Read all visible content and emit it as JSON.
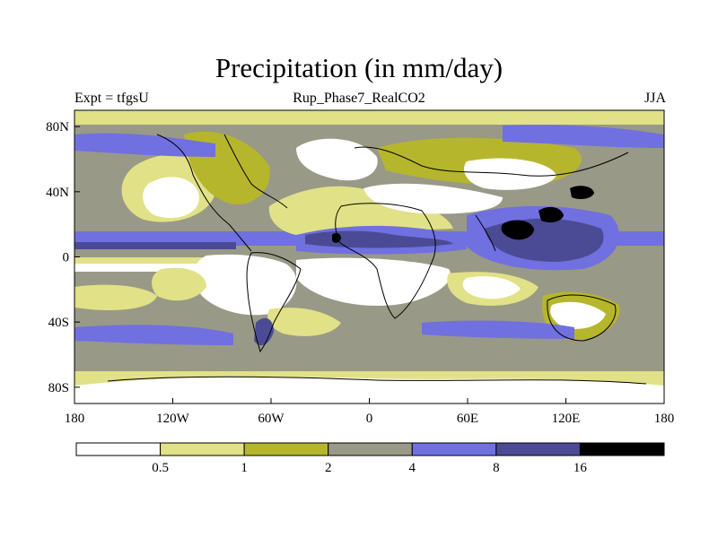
{
  "title": "Precipitation (in mm/day)",
  "left_label": "Expt = tfgsU",
  "center_label": "Rup_Phase7_RealCO2",
  "right_label": "JJA",
  "x_ticks": [
    "180",
    "120W",
    "60W",
    "0",
    "60E",
    "120E",
    "180"
  ],
  "y_ticks": [
    "80N",
    "40N",
    "0",
    "40S",
    "80S"
  ],
  "colorbar": {
    "levels": [
      "0.5",
      "1",
      "2",
      "4",
      "8",
      "16"
    ],
    "colors": [
      "#ffffff",
      "#e1e187",
      "#b6b62d",
      "#999987",
      "#7070e0",
      "#4b4b95",
      "#000000"
    ]
  },
  "chart_data": {
    "type": "heatmap",
    "title": "Precipitation (in mm/day)",
    "x_range": [
      "180W",
      "180E"
    ],
    "y_range": [
      "90S",
      "90N"
    ],
    "contour_levels_mm_per_day": [
      0.5,
      1,
      2,
      4,
      8,
      16
    ],
    "level_colors": [
      "#ffffff",
      "#e1e187",
      "#b6b62d",
      "#999987",
      "#7070e0",
      "#4b4b95",
      "#000000"
    ]
  }
}
